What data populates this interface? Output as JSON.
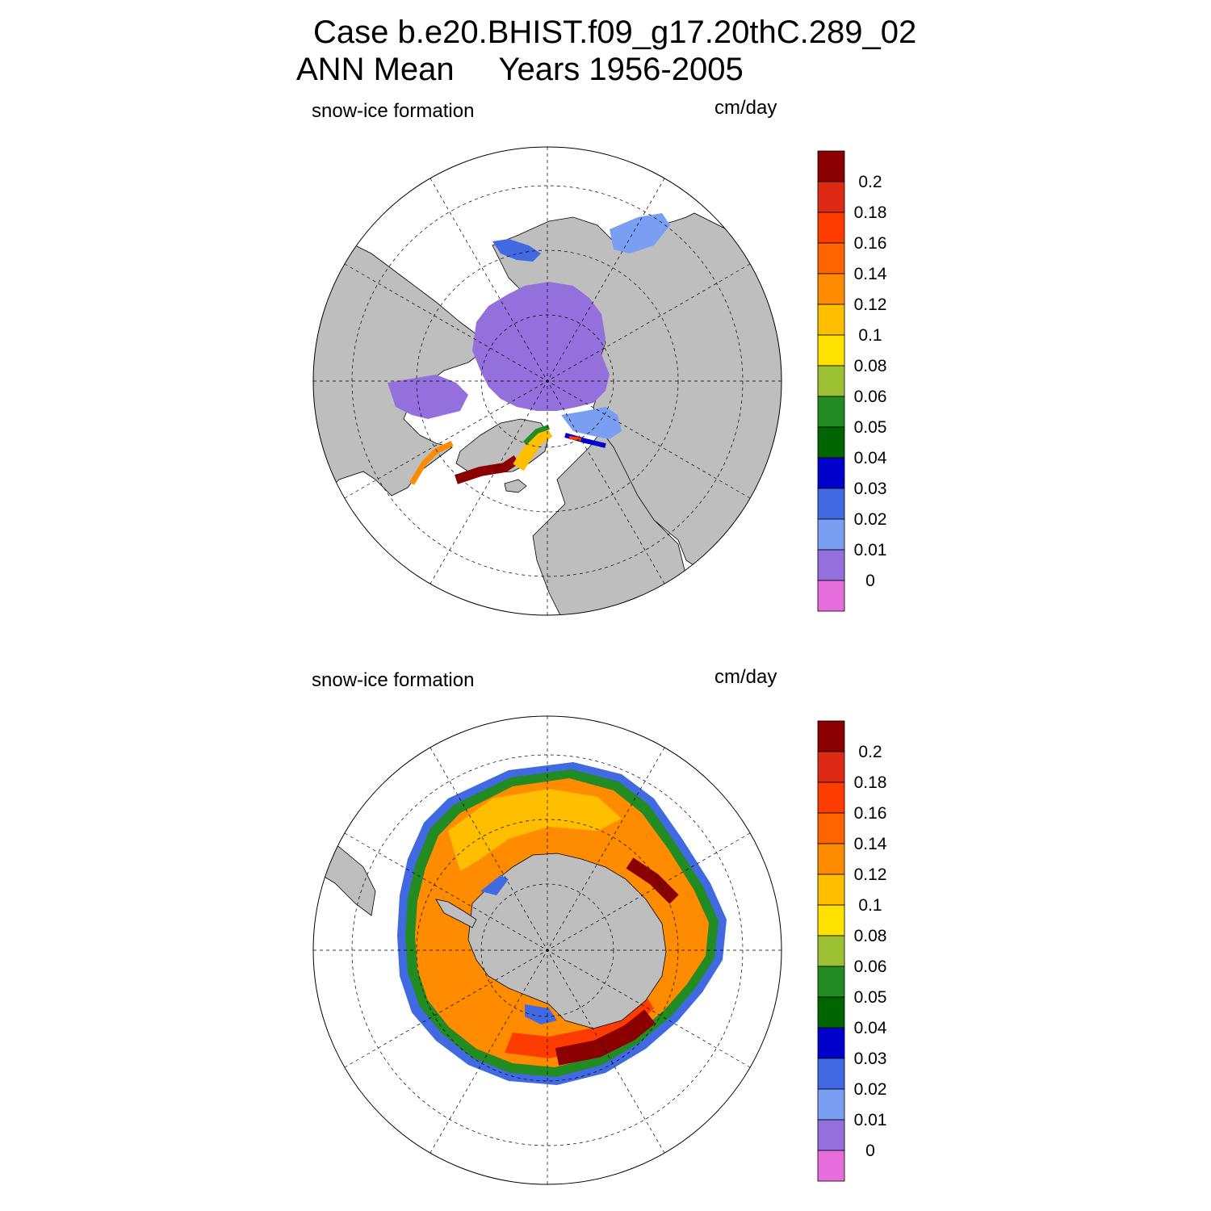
{
  "title": {
    "line1": "Case b.e20.BHIST.f09_g17.20thC.289_02",
    "line2": "ANN Mean     Years 1956-2005"
  },
  "panels": [
    {
      "label": "snow-ice formation",
      "units": "cm/day",
      "hemisphere": "north"
    },
    {
      "label": "snow-ice formation",
      "units": "cm/day",
      "hemisphere": "south"
    }
  ],
  "colorbar": {
    "labels": [
      "0.2",
      "0.18",
      "0.16",
      "0.14",
      "0.12",
      "0.1",
      "0.08",
      "0.06",
      "0.05",
      "0.04",
      "0.03",
      "0.02",
      "0.01",
      "0"
    ],
    "colors": [
      "#8b0000",
      "#dc2a14",
      "#ff3c00",
      "#ff6400",
      "#ff8c00",
      "#ffbe00",
      "#ffe100",
      "#9bc032",
      "#228b22",
      "#006400",
      "#0000cd",
      "#4169e1",
      "#7a9ef2",
      "#9370db",
      "#e66edc"
    ]
  },
  "colors": {
    "land": "#bebebe",
    "ocean": "#ffffff",
    "grid": "#000000"
  }
}
